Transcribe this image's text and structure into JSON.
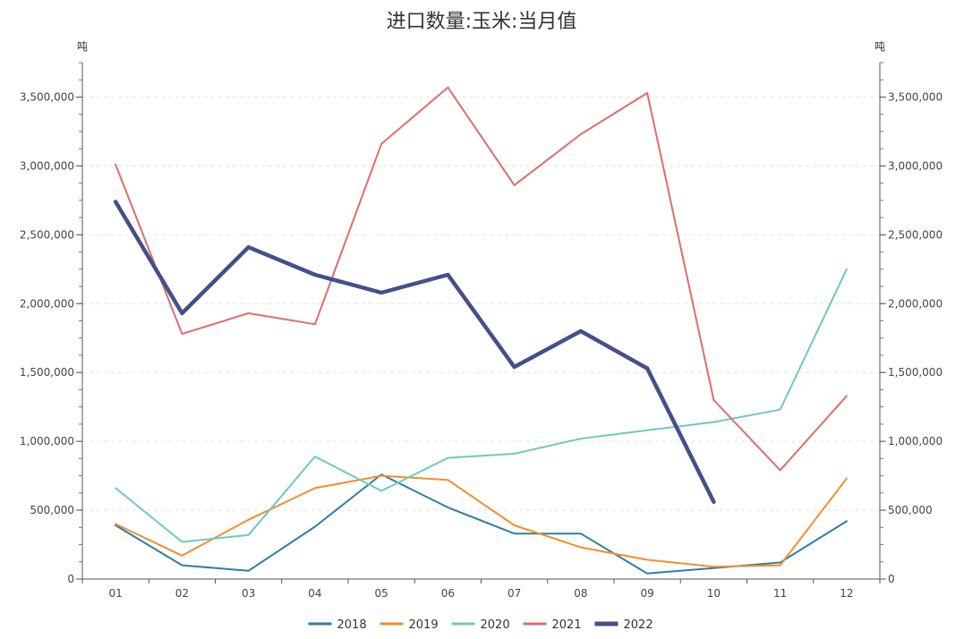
{
  "chart_data": {
    "type": "line",
    "title": "进口数量:玉米:当月值",
    "y_unit_left": "吨",
    "y_unit_right": "吨",
    "categories": [
      "01",
      "02",
      "03",
      "04",
      "05",
      "06",
      "07",
      "08",
      "09",
      "10",
      "11",
      "12"
    ],
    "ylim": [
      0,
      3750000
    ],
    "yticks": [
      0,
      500000,
      1000000,
      1500000,
      2000000,
      2500000,
      3000000,
      3500000
    ],
    "ytick_labels": [
      "0",
      "500,000",
      "1,000,000",
      "1,500,000",
      "2,000,000",
      "2,500,000",
      "3,000,000",
      "3,500,000"
    ],
    "grid": true,
    "legend_position": "bottom-center",
    "series": [
      {
        "name": "2018",
        "color": "#2e7ea5",
        "values": [
          390000,
          100000,
          60000,
          380000,
          760000,
          520000,
          330000,
          330000,
          40000,
          80000,
          120000,
          420000
        ]
      },
      {
        "name": "2019",
        "color": "#f28e2b",
        "values": [
          400000,
          170000,
          430000,
          660000,
          750000,
          720000,
          390000,
          230000,
          140000,
          90000,
          100000,
          730000
        ]
      },
      {
        "name": "2020",
        "color": "#6fc7c5",
        "values": [
          660000,
          270000,
          320000,
          890000,
          640000,
          880000,
          910000,
          1020000,
          1080000,
          1140000,
          1230000,
          2250000
        ]
      },
      {
        "name": "2021",
        "color": "#e06c6c",
        "values": [
          3010000,
          1780000,
          1930000,
          1850000,
          3160000,
          3570000,
          2860000,
          3230000,
          3530000,
          1300000,
          790000,
          1330000
        ]
      },
      {
        "name": "2022",
        "color": "#44508a",
        "values": [
          2740000,
          1930000,
          2410000,
          2210000,
          2080000,
          2210000,
          1540000,
          1800000,
          1530000,
          560000,
          null,
          null
        ]
      }
    ]
  }
}
